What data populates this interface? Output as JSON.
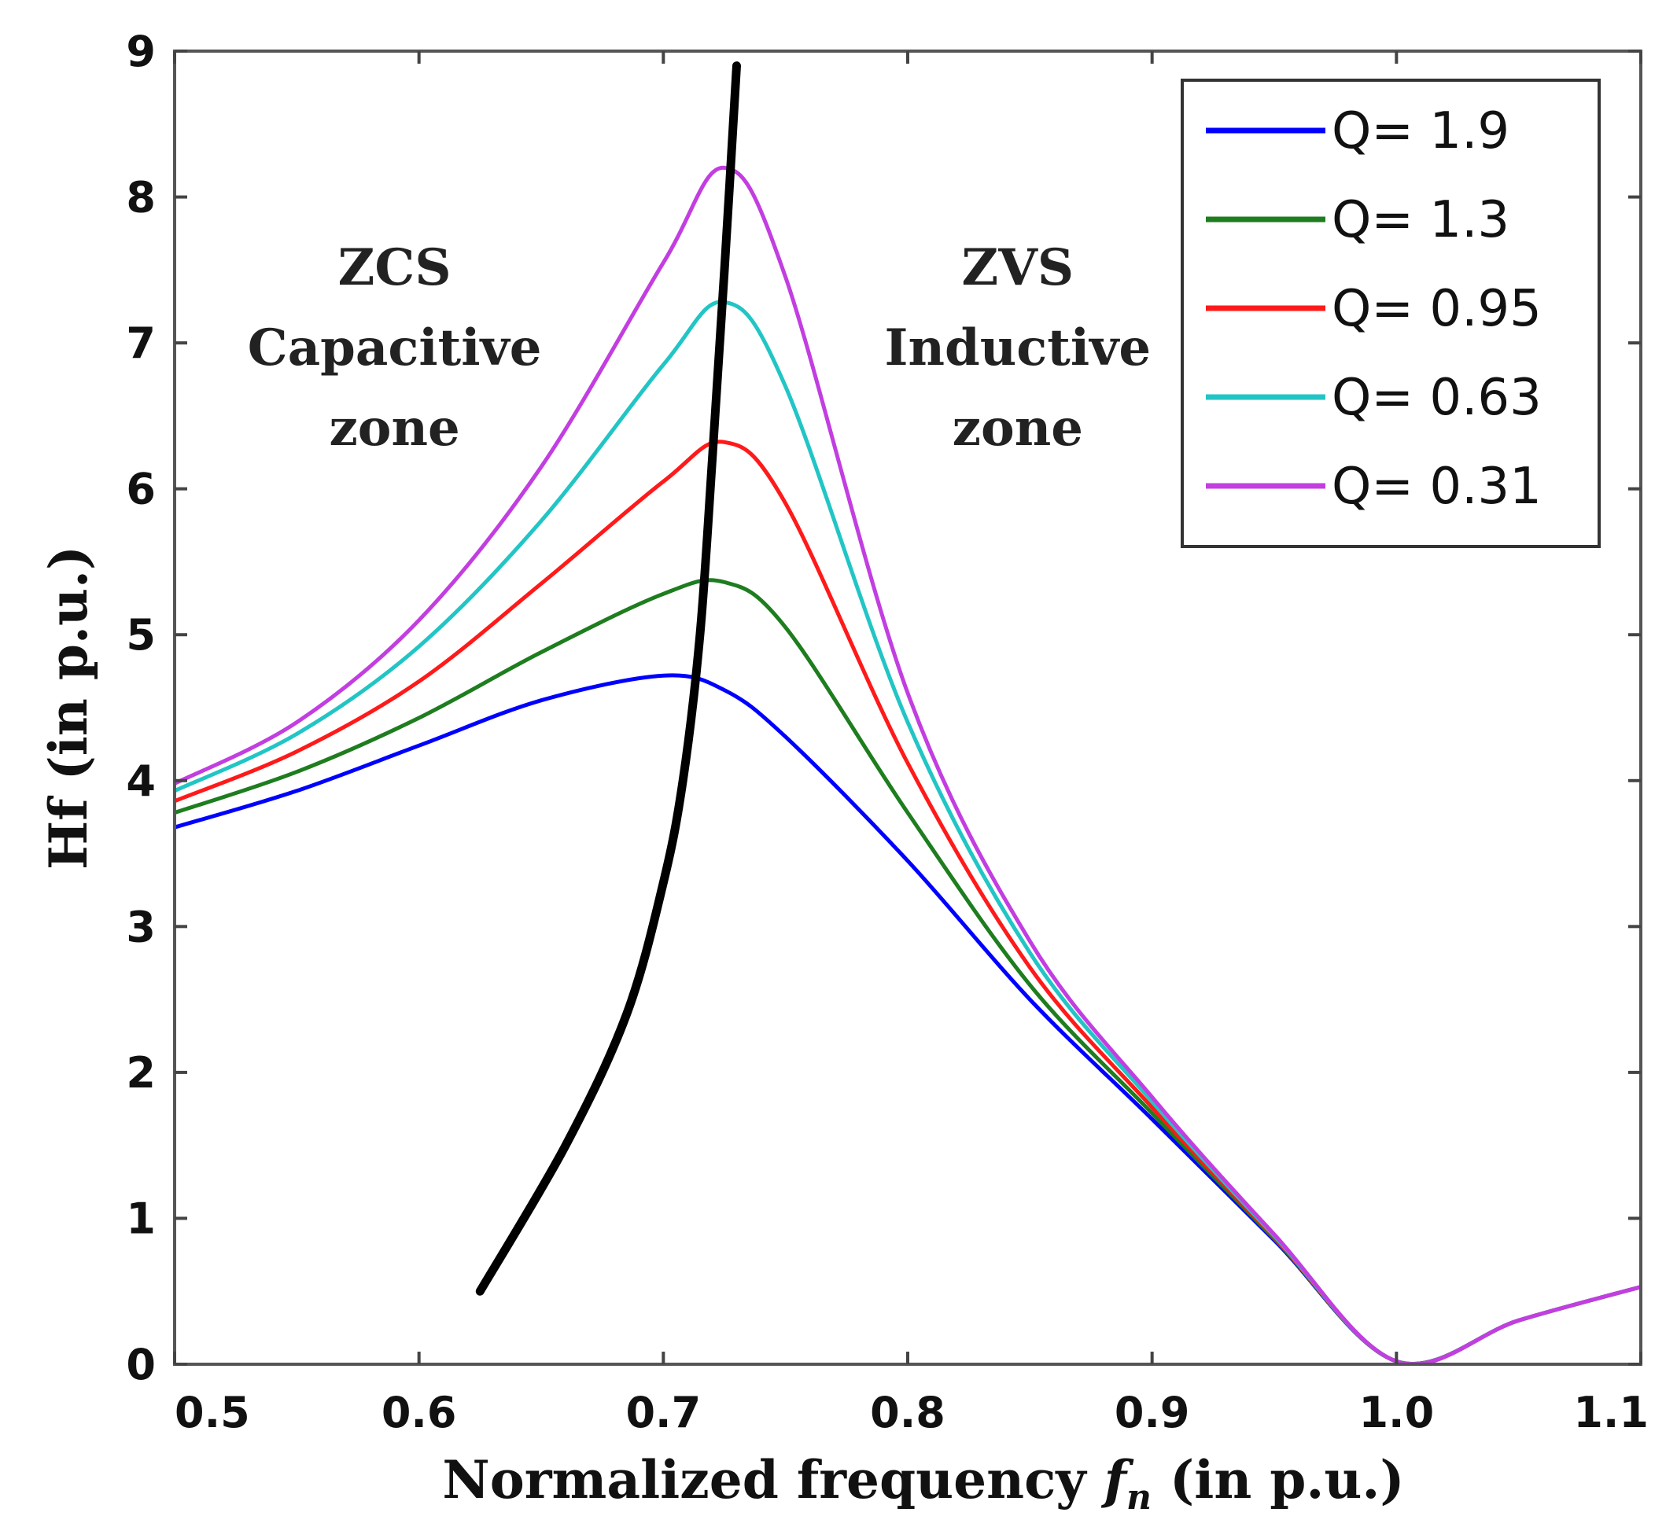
{
  "chart_data": {
    "type": "line",
    "xlabel": "Normalized frequency fₙ (in p.u.)",
    "xlabel_main": "Normalized frequency ",
    "xlabel_var": "f",
    "xlabel_sub": "n",
    "xlabel_tail": " (in p.u.)",
    "ylabel": "Hf (in p.u.)",
    "xlim": [
      0.5,
      1.1
    ],
    "ylim": [
      0,
      9
    ],
    "xticks": [
      0.5,
      0.6,
      0.7,
      0.8,
      0.9,
      1.0,
      1.1
    ],
    "xtick_labels": [
      "0.5",
      "0.6",
      "0.7",
      "0.8",
      "0.9",
      "1.0",
      "1.1"
    ],
    "yticks": [
      0,
      1,
      2,
      3,
      4,
      5,
      6,
      7,
      8,
      9
    ],
    "ytick_labels": [
      "0",
      "1",
      "2",
      "3",
      "4",
      "5",
      "6",
      "7",
      "8",
      "9"
    ],
    "grid": false,
    "legend_position": "top-right",
    "series": [
      {
        "name": "Q=  1.9",
        "color": "#0000ff",
        "x": [
          0.5,
          0.55,
          0.6,
          0.65,
          0.7,
          0.725,
          0.75,
          0.8,
          0.85,
          0.9,
          0.95,
          1.0,
          1.05,
          1.1
        ],
        "y": [
          3.68,
          3.93,
          4.24,
          4.55,
          4.72,
          4.62,
          4.3,
          3.45,
          2.5,
          1.68,
          0.85,
          0.02,
          0.3,
          0.53
        ]
      },
      {
        "name": "Q=  1.3",
        "color": "#1e7d1e",
        "x": [
          0.5,
          0.55,
          0.6,
          0.65,
          0.7,
          0.725,
          0.75,
          0.8,
          0.85,
          0.9,
          0.95,
          1.0,
          1.05,
          1.1
        ],
        "y": [
          3.78,
          4.06,
          4.43,
          4.88,
          5.28,
          5.36,
          5.05,
          3.78,
          2.6,
          1.72,
          0.86,
          0.02,
          0.3,
          0.53
        ]
      },
      {
        "name": "Q= 0.95",
        "color": "#ff1a1a",
        "x": [
          0.5,
          0.55,
          0.6,
          0.65,
          0.7,
          0.725,
          0.75,
          0.8,
          0.85,
          0.9,
          0.95,
          1.0,
          1.05,
          1.1
        ],
        "y": [
          3.86,
          4.2,
          4.68,
          5.35,
          6.05,
          6.32,
          5.9,
          4.12,
          2.72,
          1.76,
          0.87,
          0.02,
          0.3,
          0.53
        ]
      },
      {
        "name": "Q= 0.63",
        "color": "#22c5c5",
        "x": [
          0.5,
          0.55,
          0.6,
          0.65,
          0.7,
          0.725,
          0.75,
          0.8,
          0.85,
          0.9,
          0.95,
          1.0,
          1.05,
          1.1
        ],
        "y": [
          3.93,
          4.32,
          4.92,
          5.78,
          6.85,
          7.28,
          6.7,
          4.4,
          2.82,
          1.8,
          0.88,
          0.02,
          0.3,
          0.53
        ]
      },
      {
        "name": "Q= 0.31",
        "color": "#c23ee0",
        "x": [
          0.5,
          0.55,
          0.6,
          0.65,
          0.7,
          0.725,
          0.75,
          0.8,
          0.85,
          0.9,
          0.95,
          1.0,
          1.05,
          1.1
        ],
        "y": [
          3.98,
          4.4,
          5.1,
          6.15,
          7.55,
          8.2,
          7.45,
          4.6,
          2.9,
          1.83,
          0.89,
          0.02,
          0.3,
          0.53
        ]
      },
      {
        "color": "#000000",
        "x": [
          0.625,
          0.66,
          0.685,
          0.7,
          0.708,
          0.715,
          0.72,
          0.725,
          0.73
        ],
        "y": [
          0.5,
          1.5,
          2.4,
          3.3,
          4.0,
          5.0,
          6.2,
          7.5,
          8.9
        ]
      }
    ],
    "annotations": [
      {
        "lines": [
          "ZCS",
          "Capacitive",
          "zone"
        ],
        "x": 0.59,
        "y": 7.4
      },
      {
        "lines": [
          "ZVS",
          "Inductive",
          "zone"
        ],
        "x": 0.845,
        "y": 7.4
      }
    ]
  }
}
